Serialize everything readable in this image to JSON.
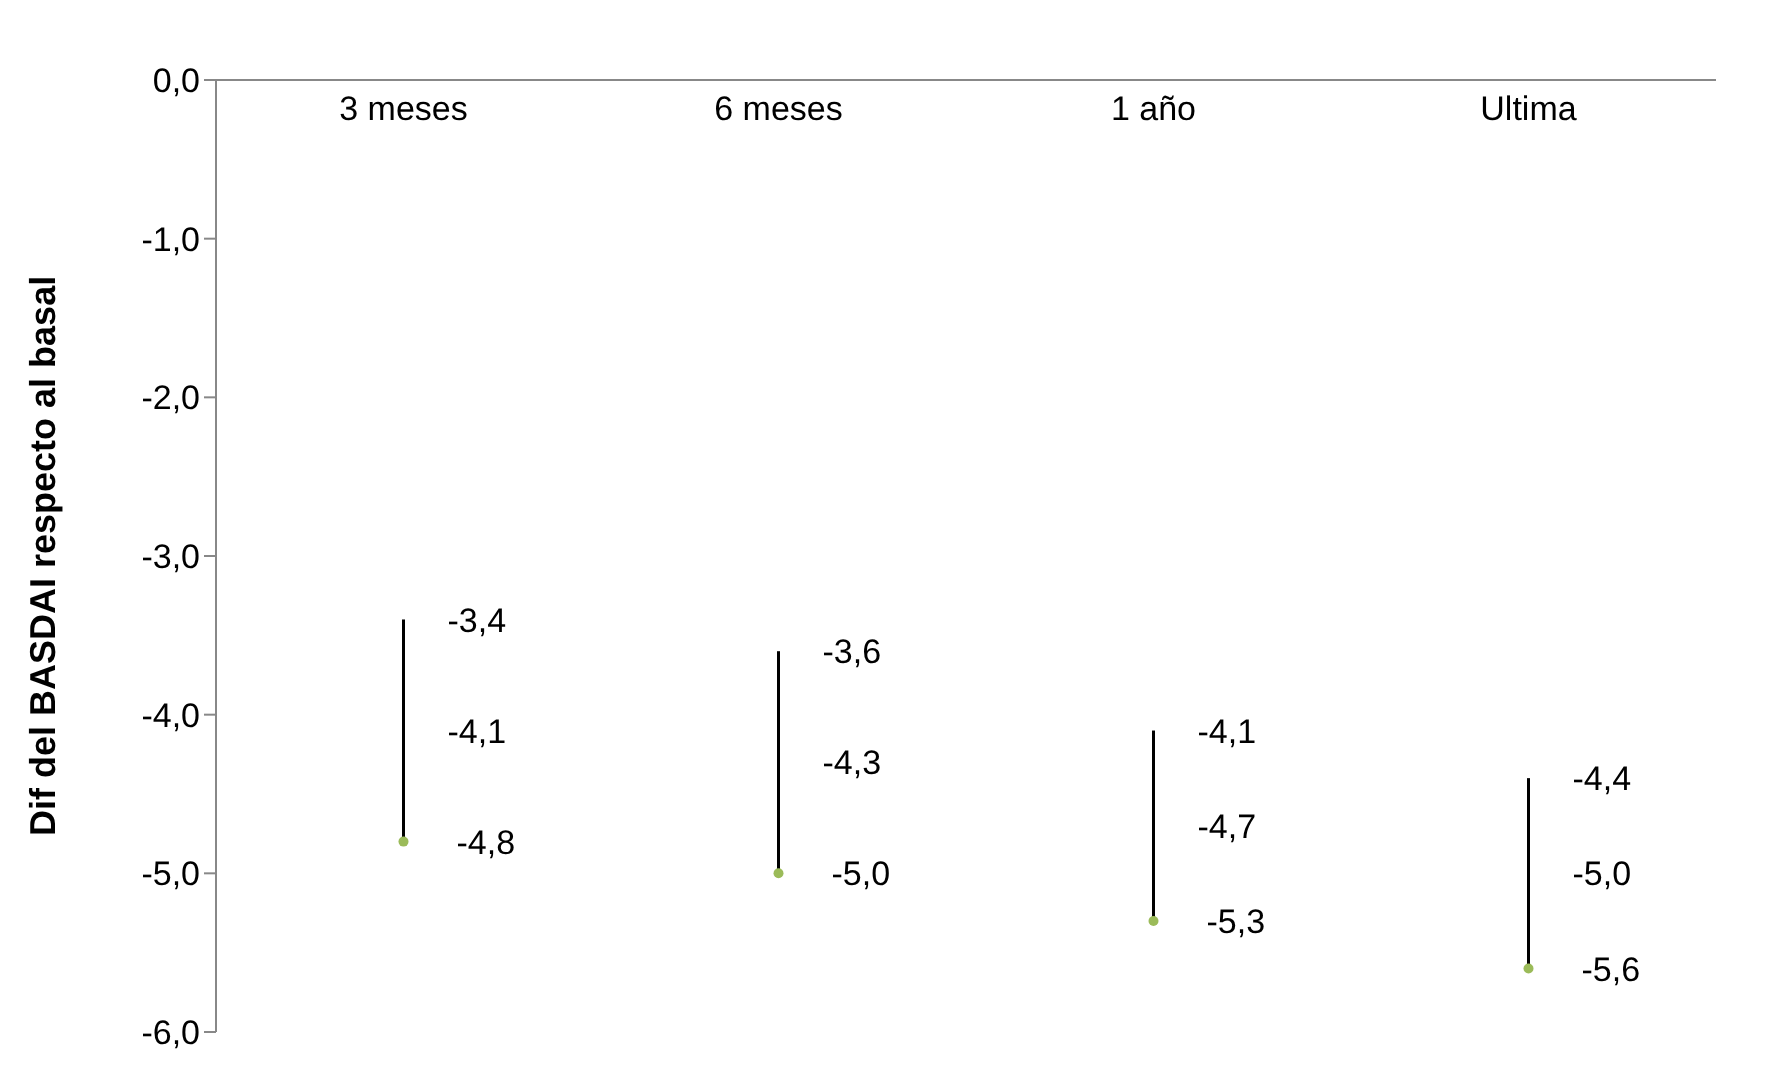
{
  "chart_data": {
    "type": "scatter",
    "ylabel": "Dif del BASDAI respecto al basal",
    "categories": [
      "3 meses",
      "6 meses",
      "1 año",
      "Ultima"
    ],
    "series": [
      {
        "color": "#9bbb59",
        "values": [
          -4.8,
          -5.0,
          -5.3,
          -5.6
        ],
        "errors": [
          [
            -4.8,
            -3.4
          ],
          [
            -5.0,
            -3.6
          ],
          [
            -5.3,
            -4.1
          ],
          [
            -5.6,
            -4.4
          ]
        ],
        "value_labels": [
          "-4,8",
          "-5,0",
          "-5,3",
          "-5,6"
        ]
      }
    ],
    "annotations": [
      {
        "text": "-3,4",
        "x": "3 meses",
        "y": -3.4
      },
      {
        "text": "-4,1",
        "x": "3 meses",
        "y": -4.1
      },
      {
        "text": "-3,6",
        "x": "6 meses",
        "y": -3.6
      },
      {
        "text": "-4,3",
        "x": "6 meses",
        "y": -4.3
      },
      {
        "text": "-4,1",
        "x": "1 año",
        "y": -4.1
      },
      {
        "text": "-4,7",
        "x": "1 año",
        "y": -4.7
      },
      {
        "text": "-4,4",
        "x": "Ultima",
        "y": -4.4
      },
      {
        "text": "-5,0",
        "x": "Ultima",
        "y": -5.0
      }
    ],
    "ylim": [
      -6,
      0
    ],
    "yticks": [
      {
        "value": 0,
        "label": "0,0"
      },
      {
        "value": -1,
        "label": "-1,0"
      },
      {
        "value": -2,
        "label": "-2,0"
      },
      {
        "value": -3,
        "label": "-3,0"
      },
      {
        "value": -4,
        "label": "-4,0"
      },
      {
        "value": -5,
        "label": "-5,0"
      },
      {
        "value": -6,
        "label": "-6,0"
      }
    ],
    "grid": false,
    "legend": false,
    "marker": "circle"
  }
}
